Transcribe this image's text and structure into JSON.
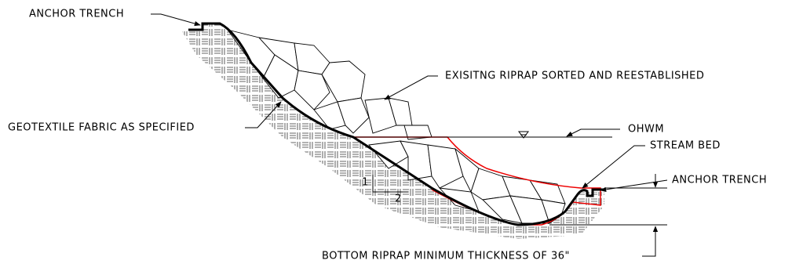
{
  "labels": {
    "anchor_trench_top": "ANCHOR TRENCH",
    "existing_riprap": "EXISITNG RIPRAP SORTED AND REESTABLISHED",
    "ohwm": "OHWM",
    "geotextile": "GEOTEXTILE FABRIC AS SPECIFIED",
    "stream_bed": "STREAM BED",
    "anchor_trench_right": "ANCHOR TRENCH",
    "bottom_riprap": "BOTTOM RIPRAP MINIMUM THICKNESS OF 36\""
  },
  "slope": {
    "rise": "1",
    "run": "2"
  }
}
